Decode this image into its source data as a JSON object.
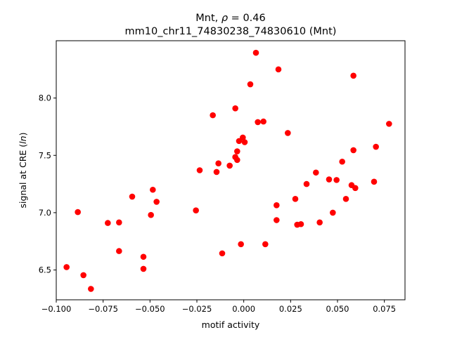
{
  "chart_data": {
    "type": "scatter",
    "title_line1": "Mnt, ",
    "title_rho": "ρ",
    "title_rest": " = 0.46",
    "title_line2": "mm10_chr11_74830238_74830610 (Mnt)",
    "xlabel": "motif activity",
    "ylabel_prefix": "signal at CRE (",
    "ylabel_italic": "ln",
    "ylabel_suffix": ")",
    "xlim": [
      -0.1,
      0.086
    ],
    "ylim": [
      6.24,
      8.5
    ],
    "xticks": [
      -0.1,
      -0.075,
      -0.05,
      -0.025,
      0.0,
      0.025,
      0.05,
      0.075
    ],
    "xtick_labels": [
      "−0.100",
      "−0.075",
      "−0.050",
      "−0.025",
      "0.000",
      "0.025",
      "0.050",
      "0.075"
    ],
    "yticks": [
      6.5,
      7.0,
      7.5,
      8.0
    ],
    "ytick_labels": [
      "6.5",
      "7.0",
      "7.5",
      "8.0"
    ],
    "marker_color": "#ff0000",
    "grid": false,
    "points": [
      {
        "x": -0.0945,
        "y": 6.525
      },
      {
        "x": -0.0885,
        "y": 7.005
      },
      {
        "x": -0.0855,
        "y": 6.455
      },
      {
        "x": -0.0815,
        "y": 6.335
      },
      {
        "x": -0.0725,
        "y": 6.91
      },
      {
        "x": -0.0665,
        "y": 6.915
      },
      {
        "x": -0.0665,
        "y": 6.665
      },
      {
        "x": -0.0595,
        "y": 7.14
      },
      {
        "x": -0.0535,
        "y": 6.615
      },
      {
        "x": -0.0535,
        "y": 6.51
      },
      {
        "x": -0.0495,
        "y": 6.98
      },
      {
        "x": -0.0485,
        "y": 7.2
      },
      {
        "x": -0.0465,
        "y": 7.095
      },
      {
        "x": -0.0255,
        "y": 7.02
      },
      {
        "x": -0.0235,
        "y": 7.37
      },
      {
        "x": -0.0165,
        "y": 7.85
      },
      {
        "x": -0.0145,
        "y": 7.355
      },
      {
        "x": -0.0135,
        "y": 7.43
      },
      {
        "x": -0.0115,
        "y": 6.645
      },
      {
        "x": -0.0075,
        "y": 7.41
      },
      {
        "x": -0.0045,
        "y": 7.91
      },
      {
        "x": -0.0045,
        "y": 7.485
      },
      {
        "x": -0.0035,
        "y": 7.46
      },
      {
        "x": -0.0035,
        "y": 7.535
      },
      {
        "x": -0.0025,
        "y": 7.625
      },
      {
        "x": -0.0015,
        "y": 6.725
      },
      {
        "x": -0.0005,
        "y": 7.655
      },
      {
        "x": 0.0005,
        "y": 7.615
      },
      {
        "x": 0.0035,
        "y": 8.12
      },
      {
        "x": 0.0065,
        "y": 8.395
      },
      {
        "x": 0.0075,
        "y": 7.79
      },
      {
        "x": 0.0105,
        "y": 7.795
      },
      {
        "x": 0.0115,
        "y": 6.725
      },
      {
        "x": 0.0175,
        "y": 7.065
      },
      {
        "x": 0.0175,
        "y": 6.935
      },
      {
        "x": 0.0185,
        "y": 8.25
      },
      {
        "x": 0.0235,
        "y": 7.695
      },
      {
        "x": 0.0275,
        "y": 7.12
      },
      {
        "x": 0.0285,
        "y": 6.895
      },
      {
        "x": 0.0305,
        "y": 6.9
      },
      {
        "x": 0.0335,
        "y": 7.25
      },
      {
        "x": 0.0385,
        "y": 7.35
      },
      {
        "x": 0.0405,
        "y": 6.915
      },
      {
        "x": 0.0455,
        "y": 7.29
      },
      {
        "x": 0.0475,
        "y": 7.0
      },
      {
        "x": 0.0495,
        "y": 7.285
      },
      {
        "x": 0.0525,
        "y": 7.445
      },
      {
        "x": 0.0545,
        "y": 7.12
      },
      {
        "x": 0.0575,
        "y": 7.24
      },
      {
        "x": 0.0585,
        "y": 8.195
      },
      {
        "x": 0.0585,
        "y": 7.545
      },
      {
        "x": 0.0595,
        "y": 7.215
      },
      {
        "x": 0.0695,
        "y": 7.27
      },
      {
        "x": 0.0705,
        "y": 7.575
      },
      {
        "x": 0.0775,
        "y": 7.775
      }
    ]
  }
}
